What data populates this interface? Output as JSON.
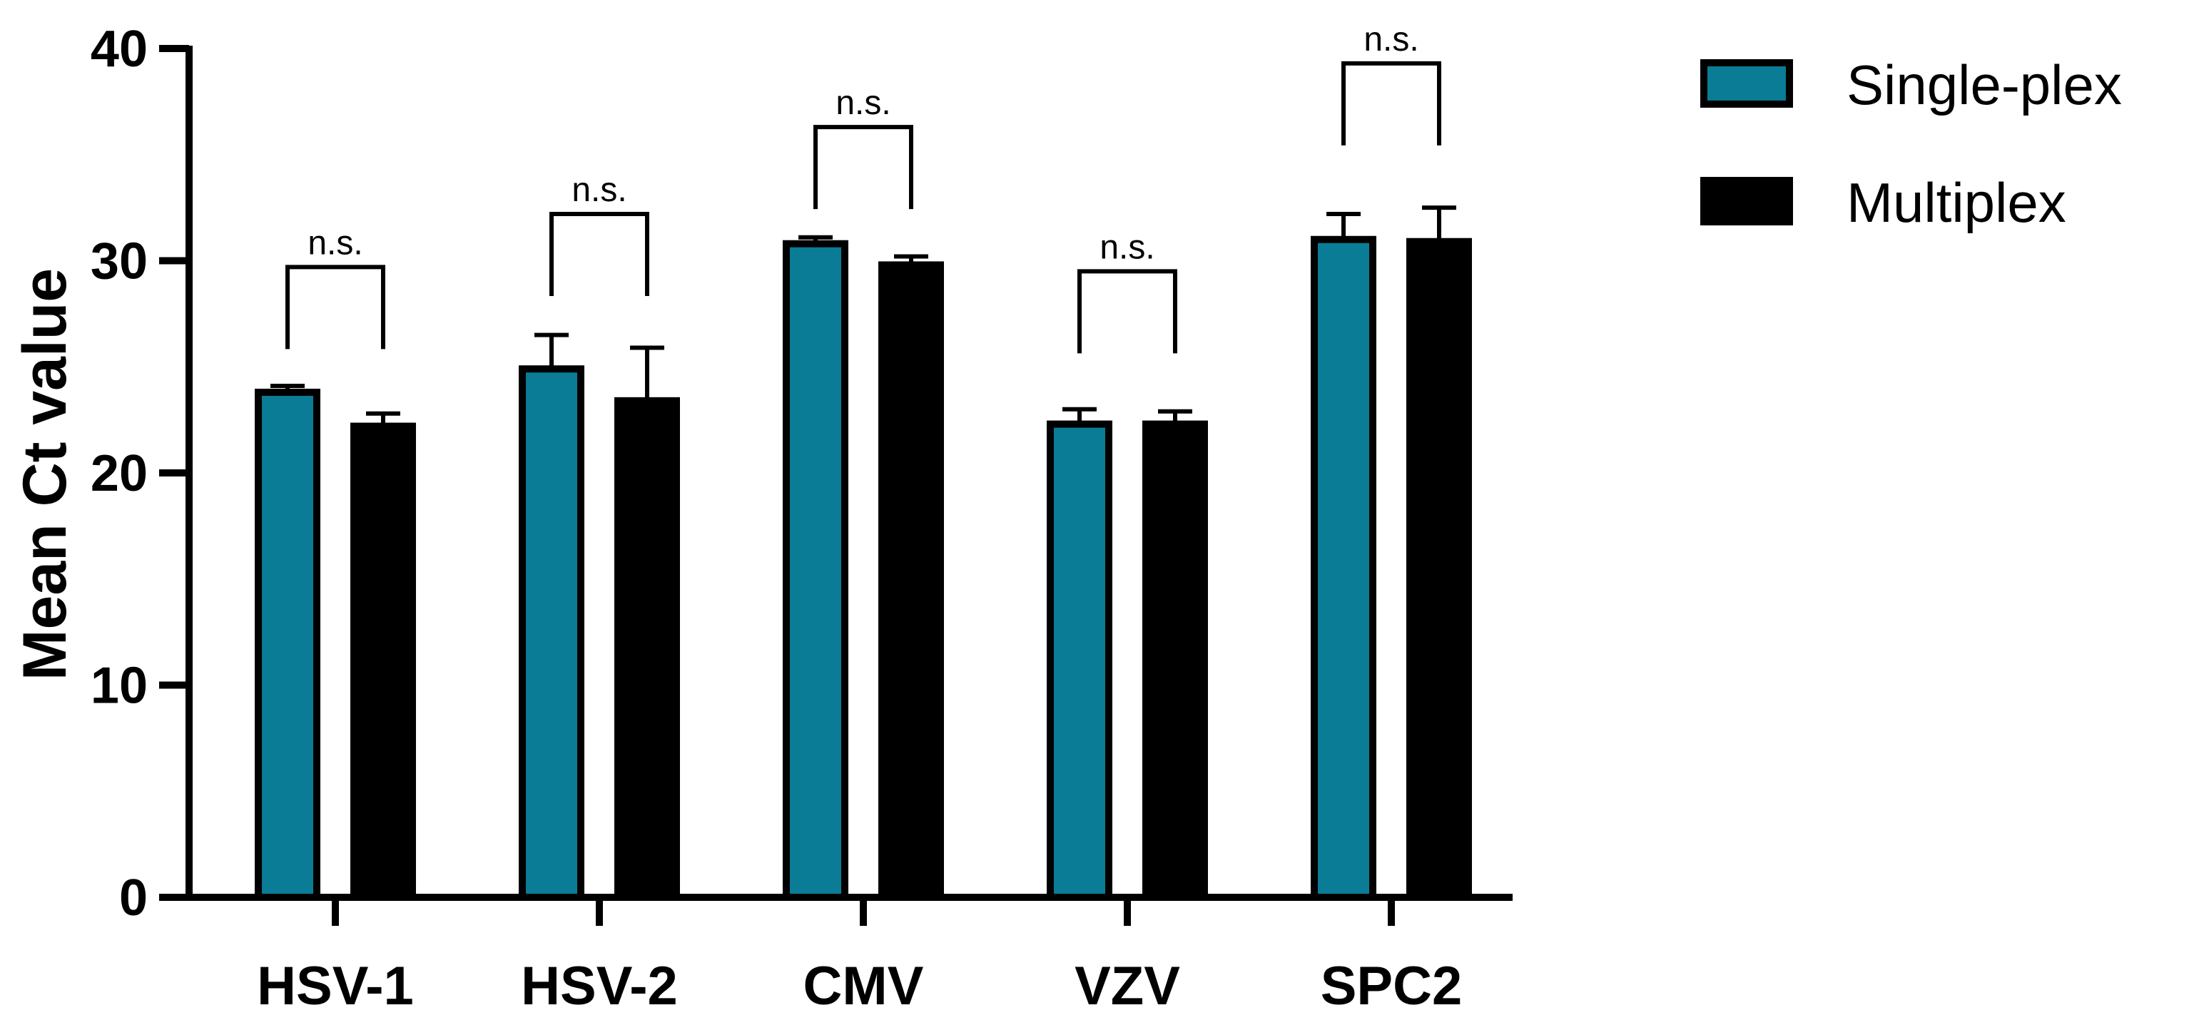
{
  "chart_data": {
    "type": "bar",
    "title": "",
    "xlabel": "",
    "ylabel": "Mean Ct value",
    "ylim": [
      0,
      40
    ],
    "yticks": [
      0,
      10,
      20,
      30,
      40
    ],
    "grid": false,
    "legend_position": "top-right",
    "categories": [
      "HSV-1",
      "HSV-2",
      "CMV",
      "VZV",
      "SPC2"
    ],
    "series": [
      {
        "name": "Single-plex",
        "color": "#0a7c96",
        "edge_color": "#000000",
        "values": [
          23.8,
          24.9,
          30.8,
          22.3,
          31.0
        ],
        "errors": [
          0.3,
          1.6,
          0.3,
          0.7,
          1.2
        ]
      },
      {
        "name": "Multiplex",
        "color": "#000000",
        "edge_color": "#000000",
        "values": [
          22.2,
          23.4,
          29.8,
          22.3,
          30.9
        ],
        "errors": [
          0.6,
          2.5,
          0.4,
          0.6,
          1.6
        ]
      }
    ],
    "annotations": [
      {
        "category": "HSV-1",
        "text": "n.s.",
        "bracket_y": 29.7
      },
      {
        "category": "HSV-2",
        "text": "n.s.",
        "bracket_y": 32.2
      },
      {
        "category": "CMV",
        "text": "n.s.",
        "bracket_y": 36.3
      },
      {
        "category": "VZV",
        "text": "n.s.",
        "bracket_y": 29.5
      },
      {
        "category": "SPC2",
        "text": "n.s.",
        "bracket_y": 39.3
      }
    ]
  }
}
